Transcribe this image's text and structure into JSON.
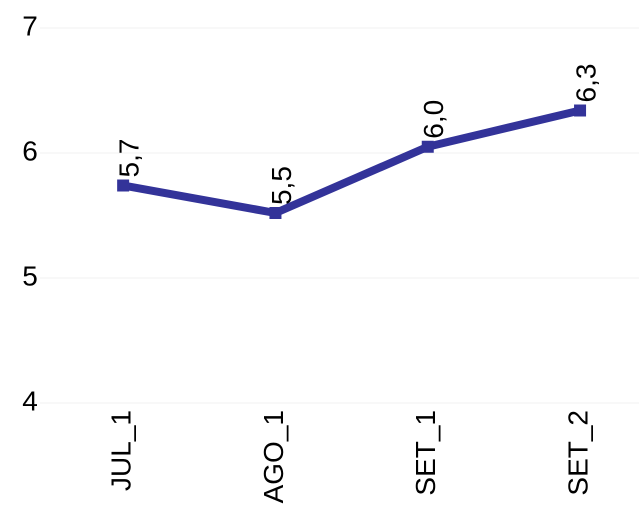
{
  "chart_data": {
    "type": "line",
    "categories": [
      "JUL_1",
      "AGO_1",
      "SET_1",
      "SET_2"
    ],
    "series": [
      {
        "color": "#333399",
        "values": [
          5.74,
          5.52,
          6.05,
          6.34
        ],
        "value_labels": [
          "5,7",
          "5,5",
          "6,0",
          "6,3"
        ]
      }
    ],
    "ylim": [
      4,
      7
    ],
    "yticks": [
      4,
      5,
      6,
      7
    ],
    "grid": true
  }
}
